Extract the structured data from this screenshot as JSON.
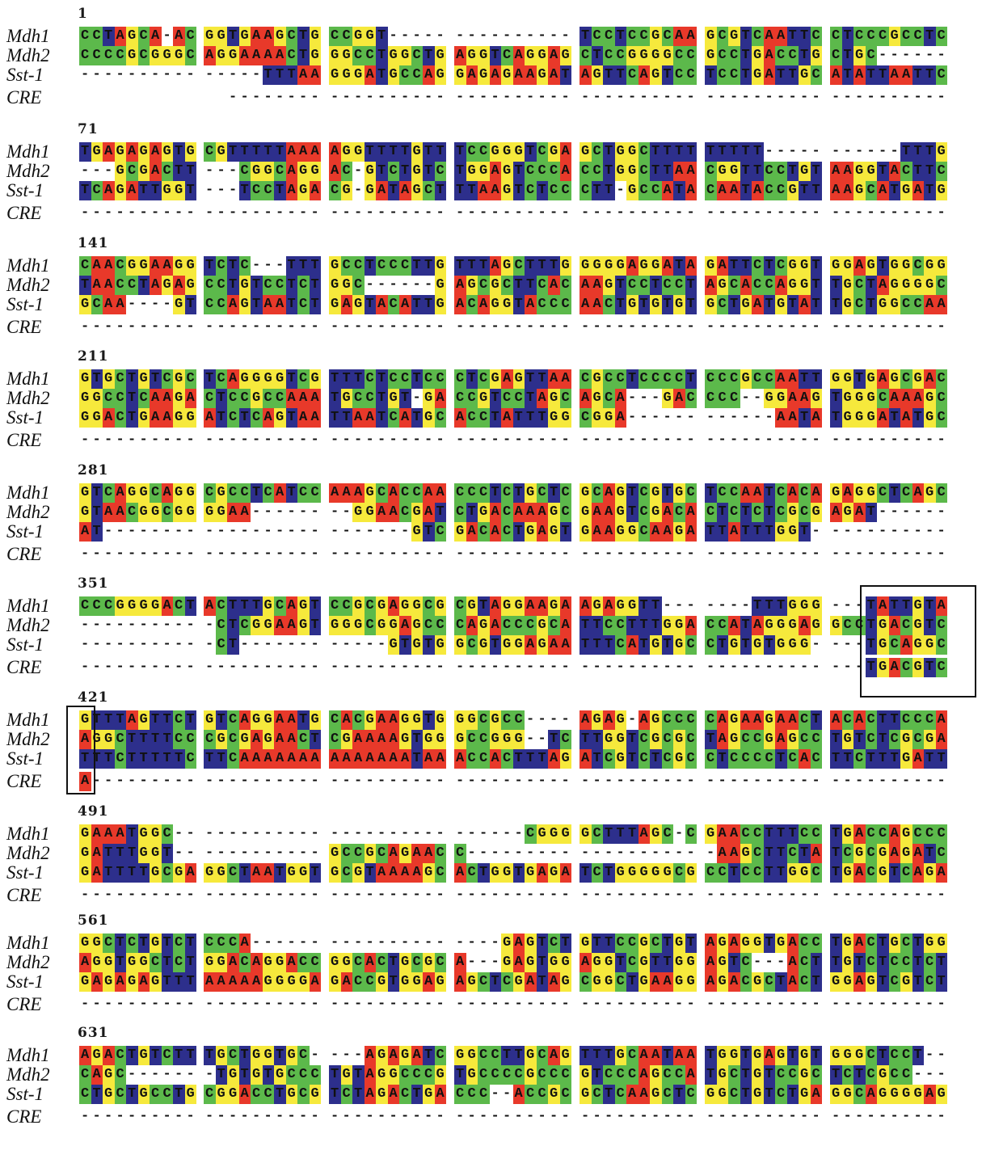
{
  "species": [
    "Mdh1",
    "Mdh2",
    "Sst-1",
    "CRE"
  ],
  "base_colors": {
    "A": "#e8392a",
    "C": "#5cb94b",
    "G": "#f6e93c",
    "T": "#2d2f8c"
  },
  "highlight_boxes": [
    {
      "block_start": 351,
      "sequences": [
        "Mdh1",
        "Mdh2",
        "Sst-1",
        "CRE"
      ],
      "motif_in_CRE": "TGACGTC"
    },
    {
      "block_start": 421,
      "sequences": [
        "Mdh1",
        "Mdh2",
        "Sst-1",
        "CRE"
      ],
      "motif_in_CRE": "A"
    }
  ],
  "blocks": [
    {
      "start": "1",
      "rows": [
        [
          "CCTAGCA-AC",
          "GGTGAAGCTG",
          "CCGGT-----",
          "----------",
          "TCCTCCGCAA",
          "GCGTCAATTC",
          "CTCCCGCCTC"
        ],
        [
          "CCCCGCGGGC",
          "AGGAAAACTG",
          "GGCCTGGCTG",
          "AGGTCAGGAG",
          "CTCCGGGGCC",
          "GCCTGACCTG",
          "CTGC------"
        ],
        [
          "----------",
          "-----TTTAA",
          "GGGATGCCAG",
          "GAGAGAAGAT",
          "AGTTCAGTCC",
          "TCCTGATTGC",
          "ATATTAATTC"
        ],
        [
          "",
          "  --------",
          "----------",
          "----------",
          "----------",
          "----------",
          "----------"
        ]
      ]
    },
    {
      "start": "71",
      "rows": [
        [
          "TGAGAGAGTG",
          "CGTTTTTAAA",
          "AGGTTTTGTT",
          "TCCGGGTCGA",
          "GCTGGCTTTT",
          "TTTTT-----",
          "------TTTG"
        ],
        [
          "---GCGACTT",
          "---CGGCAGG",
          "AC-GTCTGTC",
          "TGGAGTCCCA",
          "CCTGGCTTAA",
          "CGGTTCCTGT",
          "AAGGTACTTC"
        ],
        [
          "TCAGATTGGT",
          "---TCCTAGA",
          "CG-GATAGCT",
          "TTAAGTCTCC",
          "CTT-GCCATA",
          "CAATACCGTT",
          "AAGCATGATG"
        ],
        [
          "----------",
          "----------",
          "----------",
          "----------",
          "----------",
          "----------",
          "----------"
        ]
      ]
    },
    {
      "start": "141",
      "rows": [
        [
          "CAACGGAAGG",
          "TCTC---TTT",
          "GCCTCCCTTG",
          "TTTAGCTTTG",
          "GGGGAGGATA",
          "GATTCTCGGT",
          "GGAGTGGCGG"
        ],
        [
          "TAACCTAGAG",
          "CCTGTCCTCT",
          "GGC------G",
          "AGCGCTTCAC",
          "AAGTCCTCCT",
          "AGCACCAGGT",
          "TGCTAGGGGC"
        ],
        [
          "GCAA----GT",
          "CCAGTAATCT",
          "GAGTACATTG",
          "ACAGGTACCC",
          "AACTGTGTGT",
          "GCTGATGTAT",
          "TGCTGGCCAA"
        ],
        [
          "----------",
          "----------",
          "----------",
          "----------",
          "----------",
          "----------",
          "----------"
        ]
      ]
    },
    {
      "start": "211",
      "rows": [
        [
          "GTGCTGTCGC",
          "TCAGGGGTCG",
          "TTTCTCCTCC",
          "CTCGAGTTAA",
          "CGCCTCCCCT",
          "CCCGCCAATT",
          "GGTGAGCGAC"
        ],
        [
          "GGCCTCAAGA",
          "CTCCGCCAAA",
          "TGCCTGT-GA",
          "CCGTCCTAGC",
          "AGCA---GAC",
          "CCC--GGAAG",
          "TGGGCAAAGC"
        ],
        [
          "GGACTGAAGG",
          "ATCTCAGTAA",
          "TTAATCATGC",
          "ACCTATTTGG",
          "CGGA------",
          "------AATA",
          "TGGGATATGC"
        ],
        [
          "----------",
          "----------",
          "----------",
          "----------",
          "----------",
          "----------",
          "----------"
        ]
      ]
    },
    {
      "start": "281",
      "rows": [
        [
          "GTCAGGCAGG",
          "CGCCTCATCC",
          "AAAGCACCAA",
          "CCCTCTGCTC",
          "GCAGTCGTGC",
          "TCCAATCACA",
          "GAGGCTCAGC"
        ],
        [
          "GTAACGGCGG",
          "GGAA------",
          "--GGAACGAT",
          "CTGACAAAGC",
          "GAAGTCGACA",
          "CTCTCTCGCG",
          "AGAT------"
        ],
        [
          "AT--------",
          "----------",
          "-------GTC",
          "GACACTGAGT",
          "GAAGGCAAGA",
          "TTATTTGGT-",
          "----------"
        ],
        [
          "----------",
          "----------",
          "----------",
          "----------",
          "----------",
          "----------",
          "----------"
        ]
      ]
    },
    {
      "start": "351",
      "rows": [
        [
          "CCCGGGGACT",
          "ACTTTGCAGT",
          "CCGCGAGGCG",
          "CGTAGGAAGA",
          "AGAGGTT---",
          "----TTTGGG",
          "---TATTGTA"
        ],
        [
          "----------",
          "-CTCGGAAGT",
          "GGGCGGAGCC",
          "CAGACCCGCA",
          "TTCCTTTGGA",
          "CCATAGGGAG",
          "GCCTGACGTC"
        ],
        [
          "----------",
          "-CT-------",
          "-----GTGTG",
          "GCGTGGAGAA",
          "TTTCATGTGC",
          "CTGTGTGGG-",
          "---TGCAGGC"
        ],
        [
          "----------",
          "----------",
          "----------",
          "----------",
          "----------",
          "----------",
          "---TGACGTC"
        ]
      ]
    },
    {
      "start": "421",
      "rows": [
        [
          "GTTTAGTTCT",
          "GTCAGGAATG",
          "CACGAAGGTG",
          "GGCGCC----",
          "AGAG-AGCCC",
          "CAGAAGAACT",
          "ACACTTCCCA"
        ],
        [
          "AGGCTTTTCC",
          "CGCGAGAACT",
          "CGAAAAGTGG",
          "GCCGGG--TC",
          "TTGGTCGCGC",
          "TAGCCGAGCC",
          "TGTCTCGCGA"
        ],
        [
          "TTTCTTTTTC",
          "TTCAAAAAAA",
          "AAAAAAATAA",
          "ACCACTTTAG",
          "ATCGTCTCGC",
          "CTCCCCTCAC",
          "TTCTTTGATT"
        ],
        [
          "A---------",
          "----------",
          "----------",
          "----------",
          "----------",
          "----------",
          "----------"
        ]
      ]
    },
    {
      "start": "491",
      "rows": [
        [
          "GAAATGGC--",
          "----------",
          "----------",
          "------CGGG",
          "GCTTTAGC-C",
          "GAACCTTTCC",
          "TGACCAGCCC"
        ],
        [
          "GATTTGGT--",
          "----------",
          "GCCGCAGAAC",
          "C---------",
          "----------",
          "-AAGCTTCTA",
          "TCGCGAGATC"
        ],
        [
          "GATTTTGCGA",
          "GGCTAATGGT",
          "GCGTAAAAGC",
          "ACTGGTGAGA",
          "TCTGGGGGCG",
          "CCTCCTTGGC",
          "TGACGTCAGA"
        ],
        [
          "----------",
          "----------",
          "----------",
          "----------",
          "----------",
          "----------",
          "----------"
        ]
      ]
    },
    {
      "start": "561",
      "rows": [
        [
          "GGCTCTGTCT",
          "CCCA------",
          "----------",
          "----GAGTCT",
          "GTTCCGCTGT",
          "AGAGGTGACC",
          "TGACTGCTGG"
        ],
        [
          "AGGTGGCTCT",
          "GGACAGGACC",
          "GGCACTGCGC",
          "A---GAGTGG",
          "AGGTCGTTGG",
          "AGTC---ACT",
          "TGTCTCCTCT"
        ],
        [
          "GAGAGAGTTT",
          "AAAAAGGGGA",
          "GACCGTGGAG",
          "AGCTCGATAG",
          "CGGCTGAAGG",
          "AGACGCTACT",
          "GGAGTCGTCT"
        ],
        [
          "----------",
          "----------",
          "----------",
          "----------",
          "----------",
          "----------",
          "----------"
        ]
      ]
    },
    {
      "start": "631",
      "rows": [
        [
          "AGACTGTCTT",
          "TGCTGGTGC-",
          "---AGAGATC",
          "GGCCTTGCAG",
          "TTTGCAATAA",
          "TGGTGAGTGT",
          "GGGCTCCT--"
        ],
        [
          "CAGC------",
          "-TGTGTGCCC",
          "TGTAGGCCCG",
          "TGCCCCGCCC",
          "GTCCCAGCCA",
          "TGCTGTCCGC",
          "TCTCGCC---"
        ],
        [
          "CTGCTGCCTG",
          "CGGACCTGCG",
          "TCTAGACTGA",
          "CCC--ACCGC",
          "GCTCAAGCTC",
          "GGCTGTCTGA",
          "GGCAGGGGAG"
        ],
        [
          "----------",
          "----------",
          "----------",
          "----------",
          "----------",
          "----------",
          "----------"
        ]
      ]
    }
  ]
}
